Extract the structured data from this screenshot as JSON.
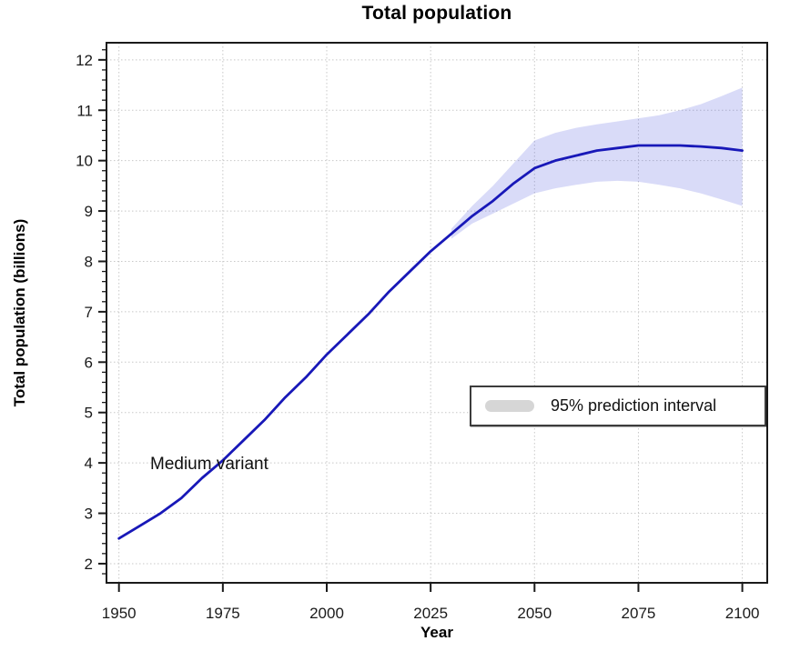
{
  "title": "Total population",
  "axes": {
    "x_label": "Year",
    "y_label": "Total population (billions)",
    "x_ticks": [
      1950,
      1975,
      2000,
      2025,
      2050,
      2075,
      2100
    ],
    "y_ticks": [
      2,
      3,
      4,
      5,
      6,
      7,
      8,
      9,
      10,
      11,
      12
    ],
    "y_minor_step": 0.2
  },
  "annotation": {
    "label": "Medium variant"
  },
  "legend": {
    "label": "95% prediction interval",
    "swatch_color": "#d6d6d6"
  },
  "colors": {
    "line": "#1818b8",
    "band": "rgba(80,90,225,0.22)",
    "grid": "#c8c8c8",
    "axis": "#1a1a1a",
    "tick_text": "#1a1a1a"
  },
  "chart_data": {
    "type": "line",
    "title": "Total population",
    "xlabel": "Year",
    "ylabel": "Total population (billions)",
    "xlim": [
      1947,
      2106
    ],
    "ylim": [
      1.62,
      12.34
    ],
    "grid": true,
    "legend_position": "middle-right",
    "x_major_ticks": [
      1950,
      1975,
      2000,
      2025,
      2050,
      2075,
      2100
    ],
    "y_major_ticks": [
      2,
      3,
      4,
      5,
      6,
      7,
      8,
      9,
      10,
      11,
      12
    ],
    "annotations": [
      {
        "text": "Medium variant",
        "x": 1962,
        "y": 4.0
      }
    ],
    "series": [
      {
        "name": "Medium variant",
        "type": "line",
        "x": [
          1950,
          1955,
          1960,
          1965,
          1970,
          1975,
          1980,
          1985,
          1990,
          1995,
          2000,
          2005,
          2010,
          2015,
          2020,
          2025,
          2030,
          2035,
          2040,
          2045,
          2050,
          2055,
          2060,
          2065,
          2070,
          2075,
          2080,
          2085,
          2090,
          2095,
          2100
        ],
        "y": [
          2.5,
          2.75,
          3.0,
          3.3,
          3.7,
          4.05,
          4.45,
          4.85,
          5.3,
          5.7,
          6.15,
          6.55,
          6.95,
          7.4,
          7.8,
          8.2,
          8.55,
          8.9,
          9.2,
          9.55,
          9.85,
          10.0,
          10.1,
          10.2,
          10.25,
          10.3,
          10.3,
          10.3,
          10.28,
          10.25,
          10.2
        ]
      },
      {
        "name": "95% prediction interval",
        "type": "band",
        "x": [
          2030,
          2035,
          2040,
          2045,
          2050,
          2055,
          2060,
          2065,
          2070,
          2075,
          2080,
          2085,
          2090,
          2095,
          2100
        ],
        "upper": [
          8.65,
          9.1,
          9.5,
          9.95,
          10.4,
          10.55,
          10.65,
          10.72,
          10.78,
          10.84,
          10.9,
          11.0,
          11.12,
          11.28,
          11.45
        ],
        "lower": [
          8.45,
          8.75,
          8.95,
          9.15,
          9.35,
          9.45,
          9.52,
          9.58,
          9.6,
          9.58,
          9.52,
          9.45,
          9.35,
          9.23,
          9.1
        ]
      }
    ]
  }
}
